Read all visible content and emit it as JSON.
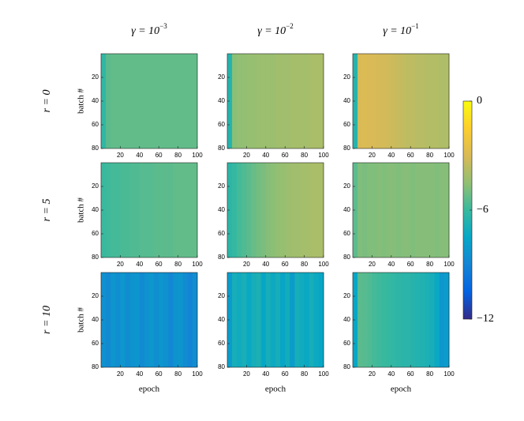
{
  "chart_data": {
    "type": "heatmap",
    "column_titles": [
      {
        "base": "γ = 10",
        "exp": "−3"
      },
      {
        "base": "γ = 10",
        "exp": "−2"
      },
      {
        "base": "γ = 10",
        "exp": "−1"
      }
    ],
    "row_labels": [
      "r = 0",
      "r = 5",
      "r = 10"
    ],
    "xlabel": "epoch",
    "ylabel": "batch #",
    "xlim": [
      0,
      100
    ],
    "xticks": [
      20,
      40,
      60,
      80,
      100
    ],
    "ylim": [
      0,
      80
    ],
    "y_reversed": true,
    "yticks": [
      20,
      40,
      60,
      80
    ],
    "colormap": "parula",
    "clim": [
      -12,
      0
    ],
    "cticks": [
      {
        "value": 0,
        "label": "0"
      },
      {
        "value": -6,
        "label": "−6"
      },
      {
        "value": -12,
        "label": "−12"
      }
    ],
    "panels": [
      [
        {
          "values": [
            -6.2,
            -5.4,
            -5.3,
            -5.3,
            -5.3,
            -5.3,
            -5.3,
            -5.3,
            -5.3,
            -5.3,
            -5.3,
            -5.3,
            -5.3,
            -5.3,
            -5.3,
            -5.3,
            -5.3,
            -5.3,
            -5.3,
            -5.3
          ]
        },
        {
          "values": [
            -6.5,
            -4.6,
            -4.5,
            -4.5,
            -4.4,
            -4.4,
            -4.3,
            -4.3,
            -4.3,
            -4.3,
            -4.2,
            -4.2,
            -4.2,
            -4.1,
            -4.1,
            -4.1,
            -4.1,
            -4.0,
            -4.0,
            -4.0
          ]
        },
        {
          "values": [
            -6.5,
            -3.0,
            -2.9,
            -3.0,
            -3.0,
            -3.1,
            -3.1,
            -3.2,
            -3.3,
            -3.4,
            -3.5,
            -3.6,
            -3.6,
            -3.7,
            -3.7,
            -3.8,
            -3.8,
            -3.8,
            -3.9,
            -3.9
          ]
        }
      ],
      [
        {
          "values": [
            -6.0,
            -5.9,
            -5.8,
            -5.8,
            -5.7,
            -5.7,
            -5.6,
            -5.6,
            -5.5,
            -5.5,
            -5.5,
            -5.4,
            -5.4,
            -5.4,
            -5.4,
            -5.3,
            -5.3,
            -5.3,
            -5.3,
            -5.3
          ]
        },
        {
          "values": [
            -6.3,
            -6.1,
            -5.8,
            -5.6,
            -5.4,
            -5.2,
            -5.0,
            -4.9,
            -4.7,
            -4.6,
            -4.5,
            -4.4,
            -4.3,
            -4.2,
            -4.2,
            -4.1,
            -4.1,
            -4.0,
            -4.0,
            -4.0
          ]
        },
        {
          "values": [
            -5.4,
            -4.8,
            -4.9,
            -4.8,
            -4.8,
            -4.7,
            -4.8,
            -4.7,
            -4.7,
            -4.8,
            -4.7,
            -4.7,
            -4.8,
            -4.7,
            -4.7,
            -4.7,
            -4.7,
            -4.8,
            -4.7,
            -4.7
          ]
        }
      ],
      [
        {
          "values": [
            -8.5,
            -8.8,
            -8.3,
            -8.6,
            -8.2,
            -8.7,
            -8.4,
            -8.3,
            -8.8,
            -8.4,
            -8.2,
            -8.6,
            -8.3,
            -8.5,
            -8.9,
            -8.4,
            -8.3,
            -8.7,
            -9.0,
            -8.6
          ]
        },
        {
          "values": [
            -8.0,
            -7.0,
            -7.2,
            -6.9,
            -7.4,
            -7.0,
            -6.8,
            -7.5,
            -7.0,
            -7.3,
            -7.0,
            -7.6,
            -7.1,
            -8.0,
            -7.0,
            -7.2,
            -7.4,
            -7.0,
            -7.3,
            -7.5
          ]
        },
        {
          "values": [
            -7.5,
            -5.4,
            -5.5,
            -5.6,
            -5.8,
            -5.9,
            -6.0,
            -6.1,
            -6.2,
            -6.3,
            -6.4,
            -6.4,
            -6.5,
            -6.6,
            -6.7,
            -6.8,
            -7.0,
            -7.4,
            -8.2,
            -8.0
          ]
        }
      ]
    ]
  }
}
